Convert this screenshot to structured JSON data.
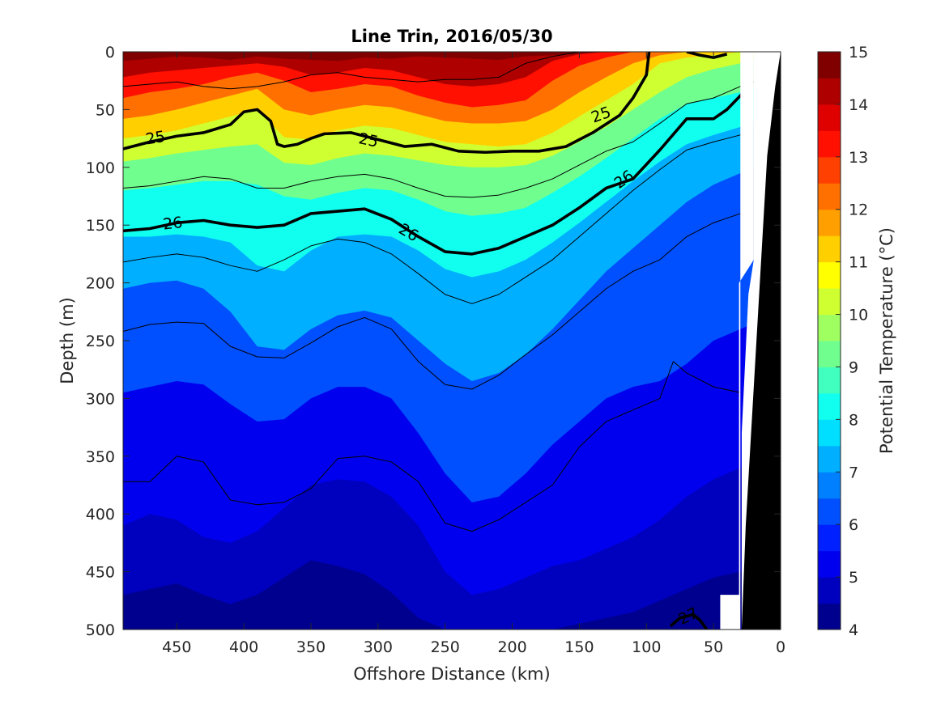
{
  "chart_data": {
    "type": "contourf",
    "title": "Line Trin, 2016/05/30",
    "xlabel": "Offshore Distance (km)",
    "ylabel": "Depth (m)",
    "colorbar_label": "Potential Temperature (°C)",
    "xlim": [
      490,
      0
    ],
    "ylim": [
      0,
      500
    ],
    "x_reversed": true,
    "y_reversed": true,
    "xticks": [
      450,
      400,
      350,
      300,
      250,
      200,
      150,
      100,
      50,
      0
    ],
    "yticks": [
      0,
      50,
      100,
      150,
      200,
      250,
      300,
      350,
      400,
      450,
      500
    ],
    "colorbar_ticks": [
      15,
      14,
      13,
      12,
      11,
      10,
      9,
      8,
      7,
      6,
      5,
      4
    ],
    "clim": [
      4,
      15
    ],
    "colors": [
      "#00008F",
      "#0000BF",
      "#0000EF",
      "#0020FF",
      "#0050FF",
      "#0080FF",
      "#00AFFF",
      "#00DFFF",
      "#10FFEF",
      "#40FFBF",
      "#70FF8F",
      "#9FFF60",
      "#CFFF30",
      "#FFFF00",
      "#FFCF00",
      "#FF9F00",
      "#FF7000",
      "#FF4000",
      "#FF1000",
      "#DF0000",
      "#AF0000",
      "#800000"
    ],
    "x": [
      490,
      470,
      450,
      430,
      410,
      390,
      370,
      350,
      330,
      310,
      290,
      270,
      250,
      230,
      210,
      190,
      170,
      150,
      130,
      110,
      90,
      70,
      50,
      30,
      20
    ],
    "temperature_surfaces": [
      {
        "level": 14.5,
        "depth": [
          8,
          6,
          4,
          5,
          7,
          4,
          6,
          7,
          8,
          5,
          6,
          4,
          5,
          6,
          7,
          4,
          3,
          2,
          0,
          0,
          0,
          0,
          0,
          0,
          0
        ]
      },
      {
        "level": 14,
        "depth": [
          22,
          18,
          16,
          14,
          12,
          10,
          13,
          20,
          18,
          14,
          16,
          22,
          28,
          30,
          28,
          22,
          8,
          2,
          0,
          0,
          0,
          0,
          0,
          0,
          0
        ]
      },
      {
        "level": 13,
        "depth": [
          40,
          35,
          32,
          28,
          22,
          18,
          25,
          35,
          32,
          28,
          30,
          38,
          44,
          48,
          46,
          42,
          25,
          12,
          5,
          0,
          0,
          0,
          0,
          0,
          0
        ]
      },
      {
        "level": 12,
        "depth": [
          58,
          55,
          50,
          44,
          38,
          32,
          50,
          55,
          50,
          46,
          48,
          54,
          60,
          62,
          62,
          60,
          50,
          35,
          22,
          10,
          3,
          0,
          0,
          0,
          0
        ]
      },
      {
        "level": 11,
        "depth": [
          75,
          72,
          68,
          62,
          56,
          50,
          74,
          76,
          68,
          64,
          66,
          72,
          78,
          80,
          82,
          80,
          70,
          56,
          42,
          28,
          10,
          5,
          3,
          0,
          0
        ]
      },
      {
        "level": 10,
        "depth": [
          95,
          92,
          88,
          85,
          82,
          80,
          96,
          98,
          92,
          88,
          90,
          94,
          98,
          100,
          100,
          98,
          90,
          78,
          65,
          50,
          35,
          22,
          15,
          10,
          8
        ]
      },
      {
        "level": 9,
        "depth": [
          120,
          118,
          115,
          112,
          112,
          115,
          125,
          128,
          122,
          118,
          120,
          128,
          138,
          142,
          140,
          135,
          122,
          108,
          92,
          75,
          58,
          45,
          40,
          35,
          32
        ]
      },
      {
        "level": 8,
        "depth": [
          160,
          160,
          158,
          160,
          165,
          185,
          190,
          172,
          160,
          158,
          160,
          172,
          188,
          195,
          190,
          180,
          165,
          148,
          130,
          112,
          95,
          80,
          72,
          65,
          60
        ]
      },
      {
        "level": 7,
        "depth": [
          205,
          200,
          198,
          205,
          225,
          255,
          258,
          240,
          228,
          224,
          230,
          250,
          270,
          285,
          278,
          262,
          240,
          215,
          190,
          170,
          150,
          130,
          115,
          105,
          100
        ]
      },
      {
        "level": 6,
        "depth": [
          295,
          290,
          285,
          288,
          305,
          320,
          318,
          300,
          290,
          290,
          300,
          330,
          365,
          390,
          385,
          365,
          340,
          320,
          300,
          290,
          285,
          270,
          250,
          240,
          235
        ]
      },
      {
        "level": 5,
        "depth": [
          410,
          400,
          405,
          420,
          425,
          415,
          395,
          375,
          370,
          372,
          385,
          410,
          450,
          470,
          465,
          455,
          445,
          440,
          430,
          420,
          405,
          385,
          370,
          360,
          355
        ]
      },
      {
        "level": 4.5,
        "depth": [
          470,
          465,
          460,
          470,
          478,
          470,
          455,
          440,
          445,
          452,
          468,
          490,
          500,
          500,
          500,
          500,
          500,
          495,
          490,
          485,
          475,
          465,
          455,
          450,
          450
        ]
      }
    ],
    "density_contours": [
      {
        "label": "25",
        "thick": true,
        "x": [
          490,
          470,
          450,
          430,
          410,
          400,
          390,
          380,
          375,
          370,
          360,
          350,
          340,
          320,
          300,
          280,
          260,
          240,
          220,
          200,
          180,
          160,
          140,
          120,
          110,
          100,
          98
        ],
        "depth": [
          84,
          78,
          73,
          70,
          63,
          52,
          50,
          60,
          80,
          82,
          80,
          75,
          71,
          70,
          76,
          82,
          80,
          86,
          87,
          86,
          86,
          82,
          70,
          55,
          40,
          20,
          0
        ]
      },
      {
        "label": "26",
        "thick": true,
        "x": [
          490,
          470,
          450,
          430,
          410,
          390,
          370,
          350,
          330,
          310,
          290,
          270,
          250,
          230,
          210,
          190,
          170,
          150,
          130,
          110,
          90,
          70,
          50,
          40,
          30,
          20
        ],
        "depth": [
          155,
          153,
          148,
          146,
          150,
          152,
          150,
          140,
          138,
          136,
          145,
          160,
          173,
          175,
          170,
          160,
          150,
          135,
          118,
          110,
          85,
          58,
          58,
          50,
          38,
          25
        ]
      },
      {
        "label": "",
        "thick": false,
        "x": [
          490,
          470,
          450,
          430,
          410,
          390,
          370,
          350,
          330,
          310,
          290,
          270,
          250,
          230,
          210,
          190,
          170,
          150,
          130,
          110,
          90,
          70,
          50,
          30,
          20
        ],
        "depth": [
          30,
          28,
          26,
          30,
          32,
          30,
          26,
          20,
          18,
          22,
          24,
          26,
          24,
          24,
          22,
          10,
          4,
          0,
          0,
          0,
          0,
          0,
          0,
          0,
          0
        ]
      },
      {
        "label": "",
        "thick": false,
        "x": [
          490,
          470,
          450,
          430,
          410,
          390,
          370,
          350,
          330,
          310,
          290,
          270,
          250,
          230,
          210,
          190,
          170,
          150,
          130,
          110,
          90,
          70,
          50,
          30,
          20
        ],
        "depth": [
          118,
          116,
          112,
          108,
          110,
          118,
          118,
          112,
          108,
          106,
          110,
          118,
          125,
          126,
          124,
          118,
          110,
          98,
          86,
          78,
          62,
          45,
          40,
          30,
          22
        ]
      },
      {
        "label": "",
        "thick": false,
        "x": [
          490,
          470,
          450,
          430,
          410,
          390,
          370,
          350,
          330,
          310,
          290,
          270,
          250,
          230,
          210,
          190,
          170,
          150,
          130,
          110,
          90,
          70,
          50,
          30,
          20
        ],
        "depth": [
          182,
          178,
          175,
          178,
          185,
          190,
          180,
          168,
          162,
          165,
          175,
          192,
          210,
          218,
          210,
          195,
          180,
          160,
          140,
          120,
          102,
          85,
          78,
          72,
          70
        ]
      },
      {
        "label": "",
        "thick": false,
        "x": [
          490,
          470,
          450,
          430,
          410,
          390,
          370,
          350,
          330,
          310,
          290,
          270,
          250,
          230,
          210,
          190,
          170,
          150,
          130,
          110,
          90,
          70,
          50,
          30
        ],
        "depth": [
          242,
          236,
          234,
          235,
          255,
          264,
          265,
          252,
          238,
          230,
          240,
          268,
          288,
          292,
          280,
          262,
          245,
          225,
          205,
          190,
          180,
          160,
          148,
          140
        ]
      },
      {
        "label": "",
        "thick": false,
        "x": [
          490,
          470,
          450,
          430,
          410,
          390,
          370,
          350,
          330,
          310,
          290,
          270,
          250,
          230,
          210,
          190,
          170,
          150,
          130,
          110,
          90,
          80,
          70,
          50,
          30
        ],
        "depth": [
          372,
          372,
          350,
          355,
          388,
          392,
          390,
          378,
          352,
          350,
          355,
          372,
          408,
          415,
          405,
          390,
          375,
          342,
          320,
          310,
          300,
          268,
          278,
          290,
          295
        ]
      },
      {
        "label": "27",
        "thick": true,
        "x": [
          82,
          75,
          65,
          60,
          55
        ],
        "depth": [
          497,
          490,
          487,
          492,
          500
        ]
      },
      {
        "label": "",
        "thick": true,
        "x": [
          70,
          60,
          50,
          40
        ],
        "depth": [
          0,
          3,
          5,
          2
        ]
      }
    ]
  }
}
